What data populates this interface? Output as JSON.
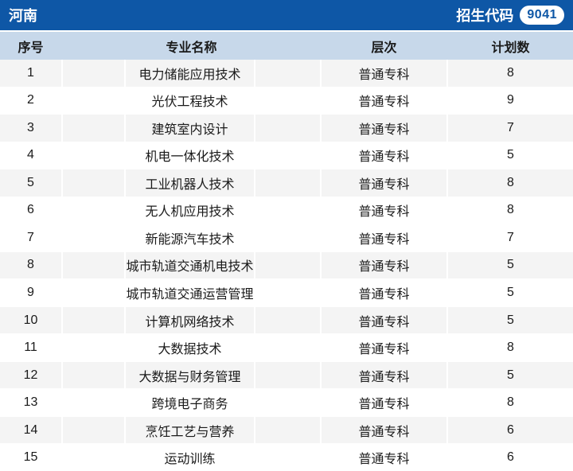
{
  "topbar": {
    "province": "河南",
    "code_label": "招生代码",
    "code_value": "9041"
  },
  "table": {
    "columns": [
      "序号",
      "专业名称",
      "层次",
      "计划数"
    ],
    "rows": [
      {
        "no": "1",
        "major": "电力储能应用技术",
        "level": "普通专科",
        "plan": "8"
      },
      {
        "no": "2",
        "major": "光伏工程技术",
        "level": "普通专科",
        "plan": "9"
      },
      {
        "no": "3",
        "major": "建筑室内设计",
        "level": "普通专科",
        "plan": "7"
      },
      {
        "no": "4",
        "major": "机电一体化技术",
        "level": "普通专科",
        "plan": "5"
      },
      {
        "no": "5",
        "major": "工业机器人技术",
        "level": "普通专科",
        "plan": "8"
      },
      {
        "no": "6",
        "major": "无人机应用技术",
        "level": "普通专科",
        "plan": "8"
      },
      {
        "no": "7",
        "major": "新能源汽车技术",
        "level": "普通专科",
        "plan": "7"
      },
      {
        "no": "8",
        "major": "城市轨道交通机电技术",
        "level": "普通专科",
        "plan": "5"
      },
      {
        "no": "9",
        "major": "城市轨道交通运营管理",
        "level": "普通专科",
        "plan": "5"
      },
      {
        "no": "10",
        "major": "计算机网络技术",
        "level": "普通专科",
        "plan": "5"
      },
      {
        "no": "11",
        "major": "大数据技术",
        "level": "普通专科",
        "plan": "8"
      },
      {
        "no": "12",
        "major": "大数据与财务管理",
        "level": "普通专科",
        "plan": "5"
      },
      {
        "no": "13",
        "major": "跨境电子商务",
        "level": "普通专科",
        "plan": "8"
      },
      {
        "no": "14",
        "major": "烹饪工艺与营养",
        "level": "普通专科",
        "plan": "6"
      },
      {
        "no": "15",
        "major": "运动训练",
        "level": "普通专科",
        "plan": "6"
      }
    ]
  },
  "colors": {
    "bar_blue": "#0e57a6",
    "header_bg": "#c7d8ea",
    "row_stripe": "#f4f4f4",
    "text": "#1a1a1a"
  }
}
